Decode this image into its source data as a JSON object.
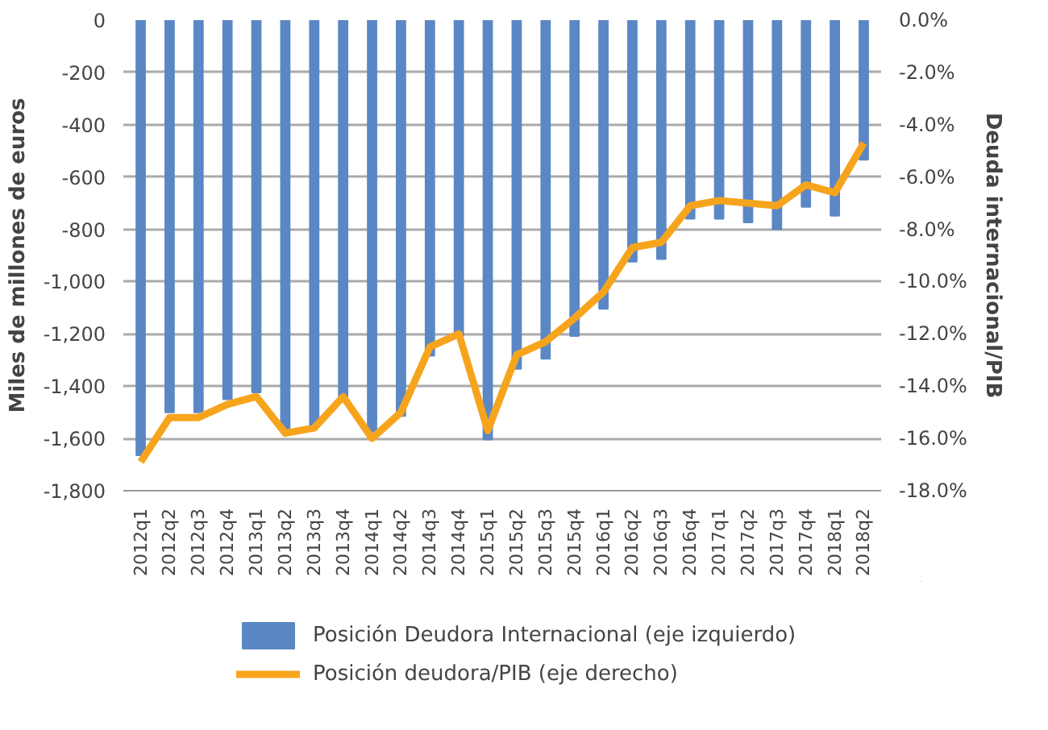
{
  "chart_data": {
    "type": "bar",
    "xlabel": null,
    "ylabel": "Miles de millones de euros",
    "y2label": "Deuda internacional/PIB",
    "categories": [
      "2012q1",
      "2012q2",
      "2012q3",
      "2012q4",
      "2013q1",
      "2013q2",
      "2013q3",
      "2013q4",
      "2014q1",
      "2014q2",
      "2014q3",
      "2014q4",
      "2015q1",
      "2015q2",
      "2015q3",
      "2015q4",
      "2016q1",
      "2016q2",
      "2016q3",
      "2016q4",
      "2017q1",
      "2017q2",
      "2017q3",
      "2017q4",
      "2018q1",
      "2018q2"
    ],
    "series": [
      {
        "name": "Posición Deudora Internacional (eje izquierdo)",
        "color": "#5b87c5",
        "values": [
          -1664,
          -1500,
          -1500,
          -1450,
          -1424,
          -1574,
          -1554,
          -1444,
          -1584,
          -1514,
          -1284,
          -1210,
          -1604,
          -1334,
          -1295,
          -1208,
          -1104,
          -924,
          -914,
          -760,
          -760,
          -774,
          -800,
          -714,
          -748,
          -534
        ]
      },
      {
        "name": "Posición deudora/PIB (eje derecho)",
        "type": "line",
        "axis": "y2",
        "color": "#f7a41d",
        "values": [
          -16.9,
          -15.2,
          -15.2,
          -14.7,
          -14.4,
          -15.8,
          -15.6,
          -14.4,
          -16.0,
          -15.0,
          -12.5,
          -12.0,
          -15.7,
          -12.8,
          -12.3,
          -11.4,
          -10.4,
          -8.7,
          -8.5,
          -7.1,
          -6.9,
          -7.0,
          -7.1,
          -6.3,
          -6.6,
          -4.7
        ]
      }
    ],
    "ylim": [
      -1800,
      0
    ],
    "yticks": [
      0,
      -200,
      -400,
      -600,
      -800,
      {
        "value": -1000,
        "label": "-1,000"
      },
      {
        "value": -1200,
        "label": "-1,200"
      },
      {
        "value": -1400,
        "label": "-1,400"
      },
      {
        "value": -1600,
        "label": "-1,600"
      },
      {
        "value": -1800,
        "label": "-1,800"
      }
    ],
    "y2lim": [
      -18,
      0
    ],
    "y2ticks": [
      {
        "value": 0,
        "label": "0.0%"
      },
      {
        "value": -2,
        "label": "-2.0%"
      },
      {
        "value": -4,
        "label": "-4.0%"
      },
      {
        "value": -6,
        "label": "-6.0%"
      },
      {
        "value": -8,
        "label": "-8.0%"
      },
      {
        "value": -10,
        "label": "-10.0%"
      },
      {
        "value": -12,
        "label": "-12.0%"
      },
      {
        "value": -14,
        "label": "-14.0%"
      },
      {
        "value": -16,
        "label": "-16.0%"
      },
      {
        "value": -18,
        "label": "-18.0%"
      }
    ],
    "grid": "y",
    "legend": "bottom"
  }
}
